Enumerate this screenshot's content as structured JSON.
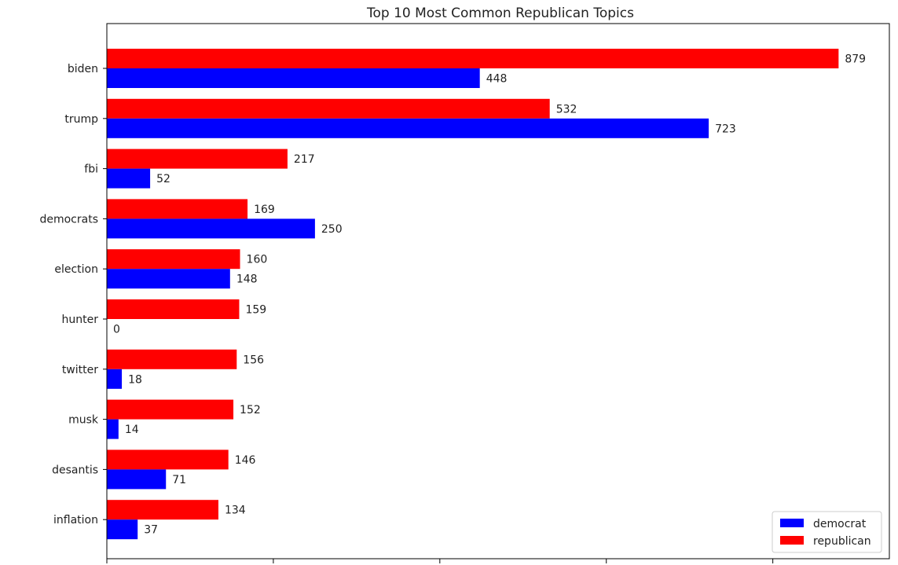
{
  "chart_data": {
    "type": "bar",
    "orientation": "horizontal",
    "title": "Top 10 Most Common Republican Topics",
    "xlabel": "",
    "ylabel": "",
    "categories": [
      "biden",
      "trump",
      "fbi",
      "democrats",
      "election",
      "hunter",
      "twitter",
      "musk",
      "desantis",
      "inflation"
    ],
    "series": [
      {
        "name": "democrat",
        "color": "#0000ff",
        "values": [
          448,
          723,
          52,
          250,
          148,
          0,
          18,
          14,
          71,
          37
        ]
      },
      {
        "name": "republican",
        "color": "#ff0000",
        "values": [
          879,
          532,
          217,
          169,
          160,
          159,
          156,
          152,
          146,
          134
        ]
      }
    ],
    "xlim": [
      0,
      940
    ],
    "x_ticks": [
      0,
      200,
      400,
      600,
      800
    ],
    "x_tick_labels_visible": false,
    "grid": false,
    "legend_position": "lower right"
  }
}
